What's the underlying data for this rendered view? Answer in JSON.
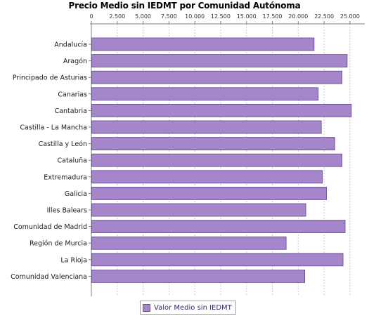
{
  "chart_data": {
    "type": "bar",
    "orientation": "horizontal",
    "title": "Precio Medio sin IEDMT por Comunidad Autónoma",
    "xlabel": "",
    "ylabel": "",
    "tick_labels": [
      "0",
      "2.500",
      "5.000",
      "7.500",
      "10.000",
      "12.500",
      "15.000",
      "17.500",
      "20.000",
      "22.500",
      "25.000"
    ],
    "xlim": [
      0,
      26300
    ],
    "grid": true,
    "legend_position": "bottom",
    "categories": [
      "Andalucía",
      "Aragón",
      "Principado de Asturias",
      "Canarias",
      "Cantabria",
      "Castilla - La Mancha",
      "Castilla y León",
      "Cataluña",
      "Extremadura",
      "Galicia",
      "Illes Balears",
      "Comunidad de Madrid",
      "Región de Murcia",
      "La Rioja",
      "Comunidad Valenciana"
    ],
    "series": [
      {
        "name": "Valor Medio sin IEDMT",
        "color": "#a586cb",
        "values": [
          21500,
          24700,
          24200,
          21900,
          25100,
          22200,
          23500,
          24200,
          22300,
          22700,
          20700,
          24500,
          18800,
          24300,
          20600
        ]
      }
    ]
  }
}
